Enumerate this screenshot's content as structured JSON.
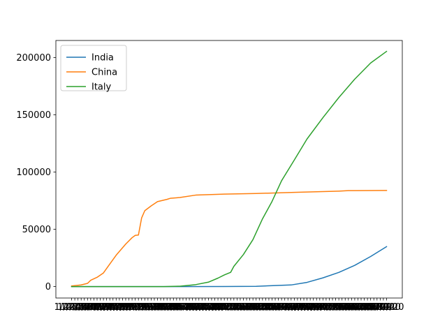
{
  "chart_data": {
    "type": "line",
    "x_start": "1/22/20",
    "x_end": "4/30/20",
    "x_tick_labels_note_only": false,
    "ylim": [
      -10000,
      215000
    ],
    "y_ticks": [
      0,
      50000,
      100000,
      150000,
      200000
    ],
    "y_tick_labels": [
      "0",
      "50000",
      "100000",
      "150000",
      "200000"
    ],
    "legend": {
      "position": "top-left",
      "entries": [
        "India",
        "China",
        "Italy"
      ]
    },
    "grid": false,
    "colors": {
      "India": "#1f77b4",
      "China": "#ff7f0e",
      "Italy": "#2ca02c"
    },
    "series": [
      {
        "name": "India",
        "points": [
          [
            "1/22/20",
            0
          ],
          [
            "2/20/20",
            3
          ],
          [
            "3/10/20",
            56
          ],
          [
            "3/20/20",
            244
          ],
          [
            "3/31/20",
            1397
          ],
          [
            "4/5/20",
            3666
          ],
          [
            "4/10/20",
            7600
          ],
          [
            "4/15/20",
            12380
          ],
          [
            "4/20/20",
            18539
          ],
          [
            "4/25/20",
            26283
          ],
          [
            "4/30/20",
            34863
          ]
        ]
      },
      {
        "name": "China",
        "points": [
          [
            "1/22/20",
            548
          ],
          [
            "1/25/20",
            1406
          ],
          [
            "1/27/20",
            2800
          ],
          [
            "1/28/20",
            5509
          ],
          [
            "1/30/20",
            8100
          ],
          [
            "2/1/20",
            11900
          ],
          [
            "2/3/20",
            19700
          ],
          [
            "2/5/20",
            27400
          ],
          [
            "2/8/20",
            37100
          ],
          [
            "2/10/20",
            42700
          ],
          [
            "2/11/20",
            44700
          ],
          [
            "2/12/20",
            45000
          ],
          [
            "2/13/20",
            59900
          ],
          [
            "2/14/20",
            66300
          ],
          [
            "2/16/20",
            70500
          ],
          [
            "2/18/20",
            74200
          ],
          [
            "2/21/20",
            76200
          ],
          [
            "2/22/20",
            77100
          ],
          [
            "2/25/20",
            77800
          ],
          [
            "3/1/20",
            79900
          ],
          [
            "3/10/20",
            80800
          ],
          [
            "3/20/20",
            81300
          ],
          [
            "4/1/20",
            82300
          ],
          [
            "4/15/20",
            83400
          ],
          [
            "4/18/20",
            83800
          ],
          [
            "4/30/20",
            83950
          ]
        ]
      },
      {
        "name": "Italy",
        "points": [
          [
            "1/22/20",
            0
          ],
          [
            "2/20/20",
            3
          ],
          [
            "2/25/20",
            322
          ],
          [
            "3/1/20",
            1694
          ],
          [
            "3/5/20",
            3858
          ],
          [
            "3/8/20",
            7375
          ],
          [
            "3/10/20",
            10149
          ],
          [
            "3/12/20",
            12462
          ],
          [
            "3/13/20",
            17660
          ],
          [
            "3/16/20",
            27980
          ],
          [
            "3/19/20",
            41035
          ],
          [
            "3/22/20",
            59138
          ],
          [
            "3/25/20",
            74386
          ],
          [
            "3/28/20",
            92472
          ],
          [
            "4/1/20",
            110574
          ],
          [
            "4/5/20",
            128948
          ],
          [
            "4/10/20",
            147577
          ],
          [
            "4/15/20",
            165155
          ],
          [
            "4/20/20",
            181228
          ],
          [
            "4/25/20",
            195351
          ],
          [
            "4/30/20",
            205463
          ]
        ]
      }
    ]
  }
}
